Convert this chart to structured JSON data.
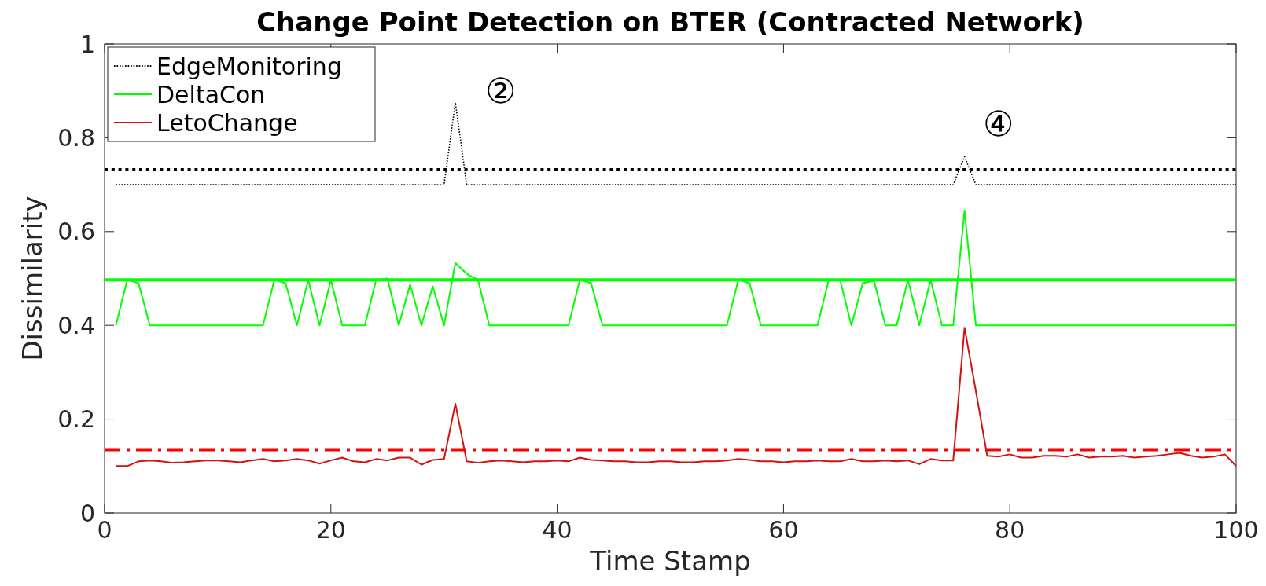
{
  "chart_data": {
    "type": "line",
    "title": "Change Point Detection on BTER (Contracted Network)",
    "xlabel": "Time Stamp",
    "ylabel": "Dissimilarity",
    "x": [
      1,
      2,
      3,
      4,
      5,
      6,
      7,
      8,
      9,
      10,
      11,
      12,
      13,
      14,
      15,
      16,
      17,
      18,
      19,
      20,
      21,
      22,
      23,
      24,
      25,
      26,
      27,
      28,
      29,
      30,
      31,
      32,
      33,
      34,
      35,
      36,
      37,
      38,
      39,
      40,
      41,
      42,
      43,
      44,
      45,
      46,
      47,
      48,
      49,
      50,
      51,
      52,
      53,
      54,
      55,
      56,
      57,
      58,
      59,
      60,
      61,
      62,
      63,
      64,
      65,
      66,
      67,
      68,
      69,
      70,
      71,
      72,
      73,
      74,
      75,
      76,
      77,
      78,
      79,
      80,
      81,
      82,
      83,
      84,
      85,
      86,
      87,
      88,
      89,
      90,
      91,
      92,
      93,
      94,
      95,
      96,
      97,
      98,
      99,
      100
    ],
    "series": [
      {
        "name": "EdgeMonitoring",
        "color": "#000000",
        "line_style": "dotted",
        "values": [
          0.7,
          0.7,
          0.7,
          0.7,
          0.7,
          0.7,
          0.7,
          0.7,
          0.7,
          0.7,
          0.7,
          0.7,
          0.7,
          0.7,
          0.7,
          0.7,
          0.7,
          0.7,
          0.7,
          0.7,
          0.7,
          0.7,
          0.7,
          0.7,
          0.7,
          0.7,
          0.7,
          0.7,
          0.7,
          0.7,
          0.875,
          0.7,
          0.7,
          0.7,
          0.7,
          0.7,
          0.7,
          0.7,
          0.7,
          0.7,
          0.7,
          0.7,
          0.7,
          0.7,
          0.7,
          0.7,
          0.7,
          0.7,
          0.7,
          0.7,
          0.7,
          0.7,
          0.7,
          0.7,
          0.7,
          0.7,
          0.7,
          0.7,
          0.7,
          0.7,
          0.7,
          0.7,
          0.7,
          0.7,
          0.7,
          0.7,
          0.7,
          0.7,
          0.7,
          0.7,
          0.7,
          0.7,
          0.7,
          0.7,
          0.7,
          0.76,
          0.7,
          0.7,
          0.7,
          0.7,
          0.7,
          0.7,
          0.7,
          0.7,
          0.7,
          0.7,
          0.7,
          0.7,
          0.7,
          0.7,
          0.7,
          0.7,
          0.7,
          0.7,
          0.7,
          0.7,
          0.7,
          0.7,
          0.7,
          0.7
        ]
      },
      {
        "name": "DeltaCon",
        "color": "#00ff00",
        "line_style": "solid",
        "values": [
          0.4,
          0.497,
          0.49,
          0.4,
          0.4,
          0.4,
          0.4,
          0.4,
          0.4,
          0.4,
          0.4,
          0.4,
          0.4,
          0.4,
          0.497,
          0.49,
          0.4,
          0.497,
          0.4,
          0.497,
          0.4,
          0.4,
          0.4,
          0.497,
          0.5,
          0.4,
          0.487,
          0.4,
          0.483,
          0.4,
          0.533,
          0.51,
          0.497,
          0.4,
          0.4,
          0.4,
          0.4,
          0.4,
          0.4,
          0.4,
          0.4,
          0.497,
          0.49,
          0.4,
          0.4,
          0.4,
          0.4,
          0.4,
          0.4,
          0.4,
          0.4,
          0.4,
          0.4,
          0.4,
          0.4,
          0.497,
          0.49,
          0.4,
          0.4,
          0.4,
          0.4,
          0.4,
          0.4,
          0.497,
          0.497,
          0.4,
          0.49,
          0.495,
          0.4,
          0.4,
          0.497,
          0.4,
          0.497,
          0.4,
          0.4,
          0.645,
          0.4,
          0.4,
          0.4,
          0.4,
          0.4,
          0.4,
          0.4,
          0.4,
          0.4,
          0.4,
          0.4,
          0.4,
          0.4,
          0.4,
          0.4,
          0.4,
          0.4,
          0.4,
          0.4,
          0.4,
          0.4,
          0.4,
          0.4,
          0.4
        ]
      },
      {
        "name": "LetoChange",
        "color": "#d41111",
        "line_style": "solid",
        "values": [
          0.1,
          0.1,
          0.11,
          0.112,
          0.11,
          0.107,
          0.108,
          0.11,
          0.112,
          0.112,
          0.11,
          0.108,
          0.112,
          0.115,
          0.11,
          0.112,
          0.115,
          0.112,
          0.105,
          0.112,
          0.118,
          0.11,
          0.108,
          0.115,
          0.112,
          0.118,
          0.118,
          0.103,
          0.113,
          0.115,
          0.233,
          0.11,
          0.107,
          0.11,
          0.112,
          0.11,
          0.108,
          0.11,
          0.11,
          0.112,
          0.11,
          0.118,
          0.113,
          0.112,
          0.11,
          0.11,
          0.108,
          0.108,
          0.11,
          0.11,
          0.108,
          0.108,
          0.11,
          0.11,
          0.112,
          0.115,
          0.113,
          0.11,
          0.11,
          0.108,
          0.11,
          0.11,
          0.112,
          0.11,
          0.11,
          0.115,
          0.11,
          0.11,
          0.112,
          0.11,
          0.112,
          0.104,
          0.115,
          0.112,
          0.112,
          0.395,
          0.26,
          0.122,
          0.12,
          0.125,
          0.118,
          0.118,
          0.122,
          0.122,
          0.12,
          0.125,
          0.118,
          0.12,
          0.12,
          0.122,
          0.118,
          0.12,
          0.122,
          0.125,
          0.128,
          0.122,
          0.118,
          0.12,
          0.125,
          0.1
        ]
      }
    ],
    "ref_lines": [
      {
        "axis": "y",
        "value": 0.732,
        "color": "#000000",
        "line_style": "dotted"
      },
      {
        "axis": "y",
        "value": 0.497,
        "color": "#00ff00",
        "line_style": "solid"
      },
      {
        "axis": "y",
        "value": 0.135,
        "color": "#ff0000",
        "line_style": "dashdot"
      }
    ],
    "annotations": [
      "②",
      "④"
    ],
    "xlim": [
      0,
      100
    ],
    "xticks": [
      0,
      20,
      40,
      60,
      80,
      100
    ],
    "ylim": [
      0,
      1
    ],
    "yticks": [
      0,
      0.2,
      0.4,
      0.6,
      0.8,
      1
    ],
    "legend": "top left"
  }
}
